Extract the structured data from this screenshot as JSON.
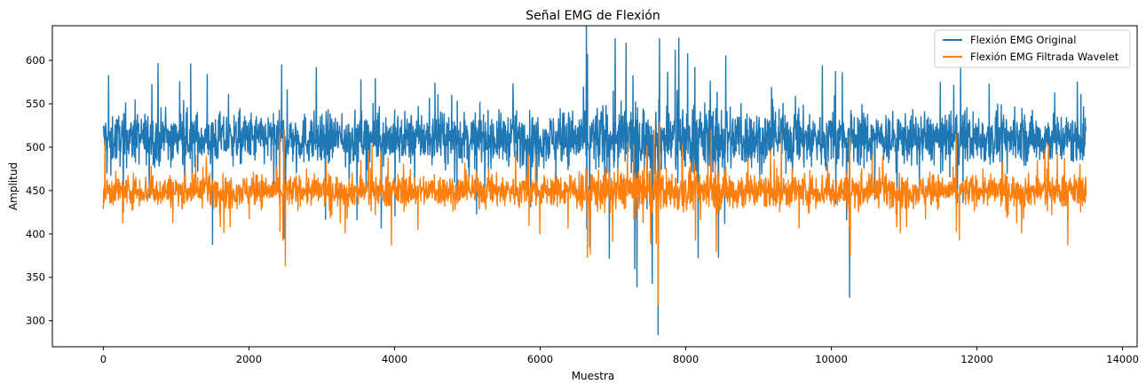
{
  "chart_data": {
    "type": "line",
    "title": "Señal EMG de Flexión",
    "xlabel": "Muestra",
    "ylabel": "Amplitud",
    "xlim": [
      -700,
      14200
    ],
    "ylim": [
      270,
      640
    ],
    "xticks": [
      0,
      2000,
      4000,
      6000,
      8000,
      10000,
      12000,
      14000
    ],
    "xtick_labels": [
      "0",
      "2000",
      "4000",
      "6000",
      "8000",
      "10000",
      "12000",
      "14000"
    ],
    "yticks": [
      300,
      350,
      400,
      450,
      500,
      550,
      600
    ],
    "ytick_labels": [
      "300",
      "350",
      "400",
      "450",
      "500",
      "550",
      "600"
    ],
    "grid": false,
    "legend_position": "top-right",
    "series": [
      {
        "name": "Flexión EMG Original",
        "color": "#1f77b4",
        "x_range": [
          0,
          13500
        ],
        "n_points": 13500,
        "baseline": 510,
        "typical_band": [
          480,
          545
        ],
        "extremes": [
          {
            "x": 1200,
            "y": 596
          },
          {
            "x": 1500,
            "y": 388
          },
          {
            "x": 2450,
            "y": 595
          },
          {
            "x": 2480,
            "y": 395
          },
          {
            "x": 6650,
            "y": 607
          },
          {
            "x": 6950,
            "y": 372
          },
          {
            "x": 7030,
            "y": 625
          },
          {
            "x": 7180,
            "y": 620
          },
          {
            "x": 7300,
            "y": 360
          },
          {
            "x": 7330,
            "y": 339
          },
          {
            "x": 7540,
            "y": 343
          },
          {
            "x": 7620,
            "y": 284
          },
          {
            "x": 7640,
            "y": 625
          },
          {
            "x": 8450,
            "y": 373
          },
          {
            "x": 8550,
            "y": 605
          },
          {
            "x": 10250,
            "y": 327
          }
        ]
      },
      {
        "name": "Flexión EMG Filtrada Wavelet",
        "color": "#ff7f0e",
        "x_range": [
          0,
          13500
        ],
        "n_points": 13500,
        "baseline": 450,
        "typical_band": [
          430,
          470
        ],
        "extremes": [
          {
            "x": 2480,
            "y": 521
          },
          {
            "x": 2500,
            "y": 363
          },
          {
            "x": 6650,
            "y": 373
          },
          {
            "x": 7200,
            "y": 505
          },
          {
            "x": 7620,
            "y": 319
          },
          {
            "x": 7640,
            "y": 529
          },
          {
            "x": 8350,
            "y": 520
          },
          {
            "x": 8420,
            "y": 380
          },
          {
            "x": 10250,
            "y": 512
          },
          {
            "x": 10260,
            "y": 375
          }
        ]
      }
    ]
  }
}
